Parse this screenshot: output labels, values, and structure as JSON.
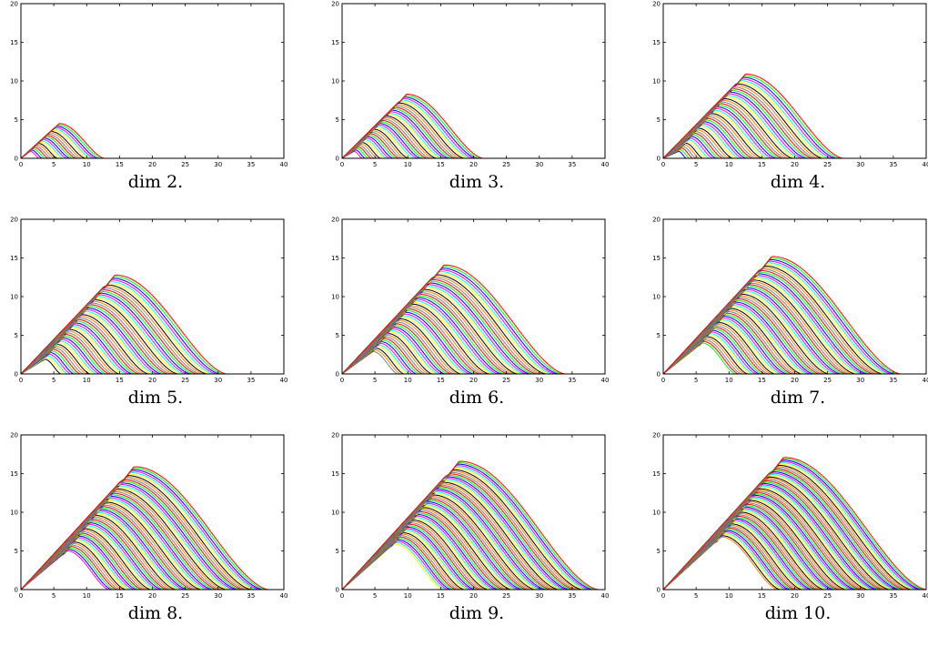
{
  "chart_data": {
    "type": "line",
    "description_note": "",
    "colors": [
      "#ff0000",
      "#00ff00",
      "#0000ff",
      "#ff00ff",
      "#00ffff",
      "#ffff00",
      "#000000",
      "#ff8000",
      "#808080"
    ],
    "xlim": [
      0,
      40
    ],
    "ylim": [
      0,
      20
    ],
    "xticks": [
      0,
      5,
      10,
      15,
      20,
      25,
      30,
      35,
      40
    ],
    "yticks": [
      0,
      5,
      10,
      15,
      20
    ],
    "panels": [
      {
        "caption": "dim 2.",
        "dim": 2,
        "curves": 22,
        "peak_x": 5.8,
        "peak_y": 4.5,
        "min_peak_x": 1.4,
        "min_peak_y": 0.9
      },
      {
        "caption": "dim 3.",
        "dim": 3,
        "curves": 40,
        "peak_x": 9.8,
        "peak_y": 8.3,
        "min_peak_x": 1.8,
        "min_peak_y": 0.9
      },
      {
        "caption": "dim 4.",
        "dim": 4,
        "curves": 48,
        "peak_x": 12.5,
        "peak_y": 10.9,
        "min_peak_x": 2.3,
        "min_peak_y": 0.9
      },
      {
        "caption": "dim 5.",
        "dim": 5,
        "curves": 52,
        "peak_x": 14.3,
        "peak_y": 12.8,
        "min_peak_x": 3.6,
        "min_peak_y": 1.9
      },
      {
        "caption": "dim 6.",
        "dim": 6,
        "curves": 54,
        "peak_x": 15.5,
        "peak_y": 14.1,
        "min_peak_x": 4.7,
        "min_peak_y": 2.9
      },
      {
        "caption": "dim 7.",
        "dim": 7,
        "curves": 56,
        "peak_x": 16.5,
        "peak_y": 15.2,
        "min_peak_x": 5.9,
        "min_peak_y": 4.0
      },
      {
        "caption": "dim 8.",
        "dim": 8,
        "curves": 58,
        "peak_x": 17.2,
        "peak_y": 15.9,
        "min_peak_x": 7.0,
        "min_peak_y": 5.0
      },
      {
        "caption": "dim 9.",
        "dim": 9,
        "curves": 60,
        "peak_x": 17.8,
        "peak_y": 16.6,
        "min_peak_x": 7.9,
        "min_peak_y": 5.9
      },
      {
        "caption": "dim 10.",
        "dim": 10,
        "curves": 62,
        "peak_x": 18.3,
        "peak_y": 17.1,
        "min_peak_x": 8.8,
        "min_peak_y": 6.8
      }
    ]
  }
}
